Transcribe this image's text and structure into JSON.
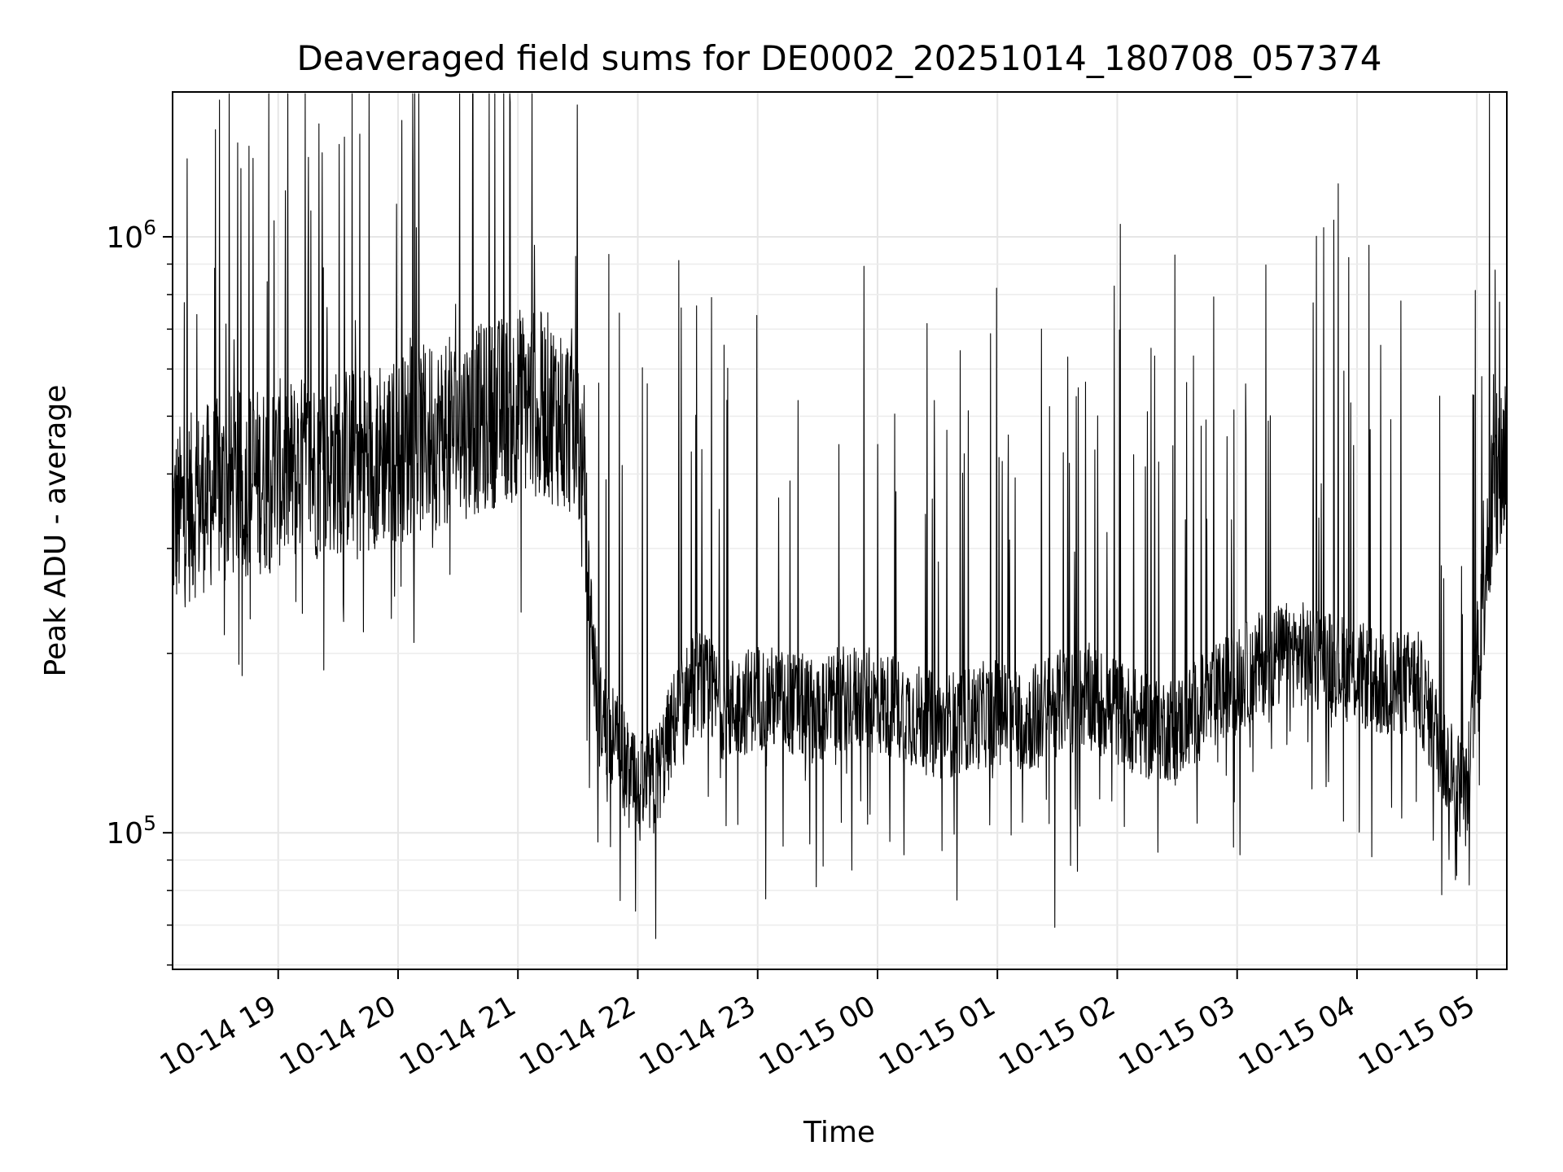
{
  "chart_data": {
    "type": "line",
    "title": "Deaveraged field sums for DE0002_20251014_180708_057374",
    "xlabel": "Time",
    "ylabel": "Peak ADU - average",
    "x_axis_type": "time",
    "y_scale": "log",
    "xlim": [
      "2025-10-14T18:07:08",
      "2025-10-15T05:15:00"
    ],
    "ylim": [
      59000,
      1750000
    ],
    "x_ticks": [
      {
        "value": "2025-10-14T19:00",
        "label": "10-14 19"
      },
      {
        "value": "2025-10-14T20:00",
        "label": "10-14 20"
      },
      {
        "value": "2025-10-14T21:00",
        "label": "10-14 21"
      },
      {
        "value": "2025-10-14T22:00",
        "label": "10-14 22"
      },
      {
        "value": "2025-10-14T23:00",
        "label": "10-14 23"
      },
      {
        "value": "2025-10-15T00:00",
        "label": "10-15 00"
      },
      {
        "value": "2025-10-15T01:00",
        "label": "10-15 01"
      },
      {
        "value": "2025-10-15T02:00",
        "label": "10-15 02"
      },
      {
        "value": "2025-10-15T03:00",
        "label": "10-15 03"
      },
      {
        "value": "2025-10-15T04:00",
        "label": "10-15 04"
      },
      {
        "value": "2025-10-15T05:00",
        "label": "10-15 05"
      }
    ],
    "y_ticks": [
      {
        "value": 100000,
        "base": "10",
        "exp": "5"
      },
      {
        "value": 1000000,
        "base": "10",
        "exp": "6"
      }
    ],
    "grid": true,
    "line_color": "#000000",
    "series": [
      {
        "x": [
          "2025-10-14T18:07",
          "2025-10-14T18:20",
          "2025-10-14T18:35",
          "2025-10-14T18:50",
          "2025-10-14T19:00",
          "2025-10-14T19:15",
          "2025-10-14T19:30",
          "2025-10-14T19:45",
          "2025-10-14T20:00",
          "2025-10-14T20:15",
          "2025-10-14T20:30",
          "2025-10-14T20:45",
          "2025-10-14T21:00",
          "2025-10-14T21:15",
          "2025-10-14T21:30",
          "2025-10-14T21:40",
          "2025-10-14T21:50",
          "2025-10-14T22:00",
          "2025-10-14T22:10",
          "2025-10-14T22:20",
          "2025-10-14T22:30",
          "2025-10-14T22:45",
          "2025-10-14T23:00",
          "2025-10-14T23:15",
          "2025-10-14T23:30",
          "2025-10-14T23:45",
          "2025-10-15T00:00",
          "2025-10-15T00:15",
          "2025-10-15T00:30",
          "2025-10-15T00:45",
          "2025-10-15T01:00",
          "2025-10-15T01:15",
          "2025-10-15T01:30",
          "2025-10-15T01:45",
          "2025-10-15T02:00",
          "2025-10-15T02:15",
          "2025-10-15T02:30",
          "2025-10-15T02:45",
          "2025-10-15T03:00",
          "2025-10-15T03:15",
          "2025-10-15T03:30",
          "2025-10-15T03:45",
          "2025-10-15T04:00",
          "2025-10-15T04:15",
          "2025-10-15T04:30",
          "2025-10-15T04:45",
          "2025-10-15T04:55",
          "2025-10-15T05:05",
          "2025-10-15T05:15"
        ],
        "y": [
          330000,
          360000,
          380000,
          390000,
          400000,
          410000,
          420000,
          430000,
          440000,
          460000,
          480000,
          500000,
          530000,
          520000,
          480000,
          160000,
          140000,
          115000,
          125000,
          160000,
          180000,
          160000,
          170000,
          165000,
          160000,
          170000,
          165000,
          160000,
          150000,
          155000,
          160000,
          155000,
          165000,
          170000,
          160000,
          150000,
          150000,
          165000,
          180000,
          195000,
          200000,
          195000,
          185000,
          175000,
          180000,
          130000,
          115000,
          320000,
          450000
        ]
      }
    ]
  }
}
